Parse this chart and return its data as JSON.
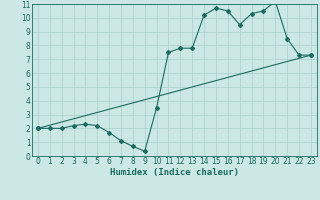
{
  "xlabel": "Humidex (Indice chaleur)",
  "bg_color": "#cce8e4",
  "grid_color": "#aacfcb",
  "line_color": "#1a6b60",
  "xlim": [
    -0.5,
    23.5
  ],
  "ylim": [
    0,
    11
  ],
  "xticks": [
    0,
    1,
    2,
    3,
    4,
    5,
    6,
    7,
    8,
    9,
    10,
    11,
    12,
    13,
    14,
    15,
    16,
    17,
    18,
    19,
    20,
    21,
    22,
    23
  ],
  "yticks": [
    0,
    1,
    2,
    3,
    4,
    5,
    6,
    7,
    8,
    9,
    10,
    11
  ],
  "line1_x": [
    0,
    1,
    2,
    3,
    4,
    5,
    6,
    7,
    8,
    9,
    10,
    11,
    12,
    13,
    14,
    15,
    16,
    17,
    18,
    19,
    20,
    21,
    22,
    23
  ],
  "line1_y": [
    2,
    2,
    2,
    2.2,
    2.3,
    2.2,
    1.7,
    1.1,
    0.7,
    0.35,
    3.5,
    7.5,
    7.8,
    7.8,
    10.2,
    10.7,
    10.5,
    9.5,
    10.3,
    10.5,
    11.2,
    8.5,
    7.3,
    7.3
  ],
  "line2_x": [
    0,
    23
  ],
  "line2_y": [
    2,
    7.3
  ],
  "marker": "D",
  "markersize": 2.0,
  "linewidth": 0.8,
  "tick_fontsize": 5.5,
  "xlabel_fontsize": 6.5
}
